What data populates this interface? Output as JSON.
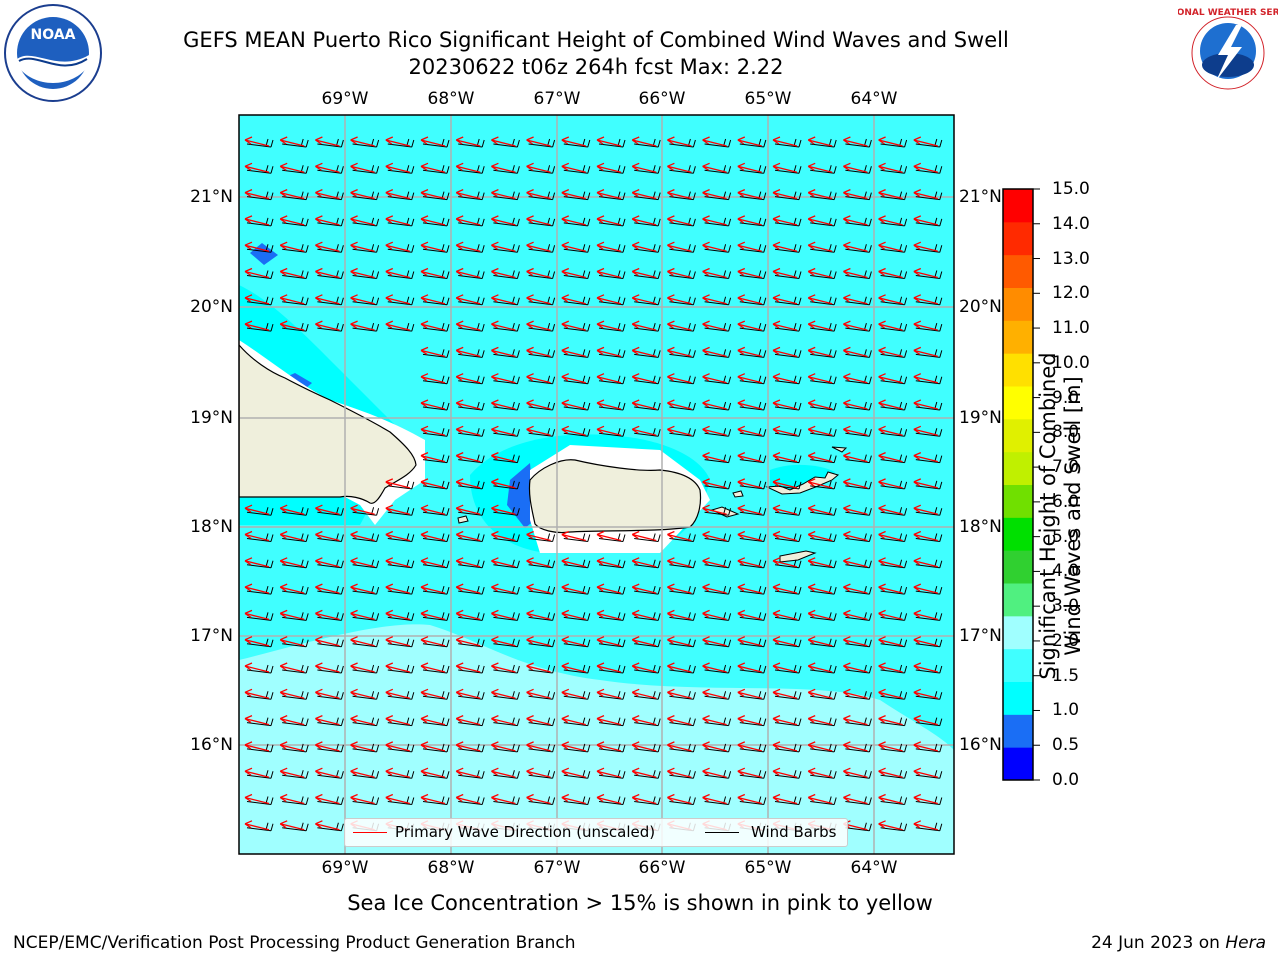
{
  "title": {
    "line1": "GEFS MEAN Puerto Rico Significant Height of Combined Wind Waves and Swell",
    "line2": "20230622 t06z 264h fcst   Max: 2.22"
  },
  "logos": {
    "noaa_text": "NOAA",
    "nws_text": "NATIONAL WEATHER SERVICE"
  },
  "map": {
    "lon_labels": [
      "69°W",
      "68°W",
      "67°W",
      "66°W",
      "65°W",
      "64°W"
    ],
    "lat_labels": [
      "21°N",
      "20°N",
      "19°N",
      "18°N",
      "17°N",
      "16°N"
    ],
    "legend": {
      "primary_wave_label": "Primary Wave Direction (unscaled)",
      "wind_barbs_label": "Wind Barbs"
    }
  },
  "colorbar": {
    "title_line1": "Significant Height of Combined",
    "title_line2": "Wind Waves and Swell [m]",
    "ticks": [
      "15.0",
      "14.0",
      "13.0",
      "12.0",
      "11.0",
      "10.0",
      "9.0",
      "8.0",
      "7.0",
      "6.0",
      "5.0",
      "4.0",
      "3.0",
      "2.0",
      "1.5",
      "1.0",
      "0.5",
      "0.0"
    ],
    "colors": [
      "#0000ff",
      "#1a6ef5",
      "#00ffff",
      "#40ffff",
      "#a0ffff",
      "#50f080",
      "#30d030",
      "#00e000",
      "#70e000",
      "#c0f000",
      "#e0f000",
      "#ffff00",
      "#ffe000",
      "#ffb000",
      "#ff8c00",
      "#ff5a00",
      "#ff2a00",
      "#ff0000"
    ]
  },
  "caption": "Sea Ice Concentration > 15% is shown in pink to yellow",
  "footer": {
    "left": "NCEP/EMC/Verification Post Processing Product Generation Branch",
    "right_prefix": "24 Jun 2023 on ",
    "right_host": "Hera"
  }
}
